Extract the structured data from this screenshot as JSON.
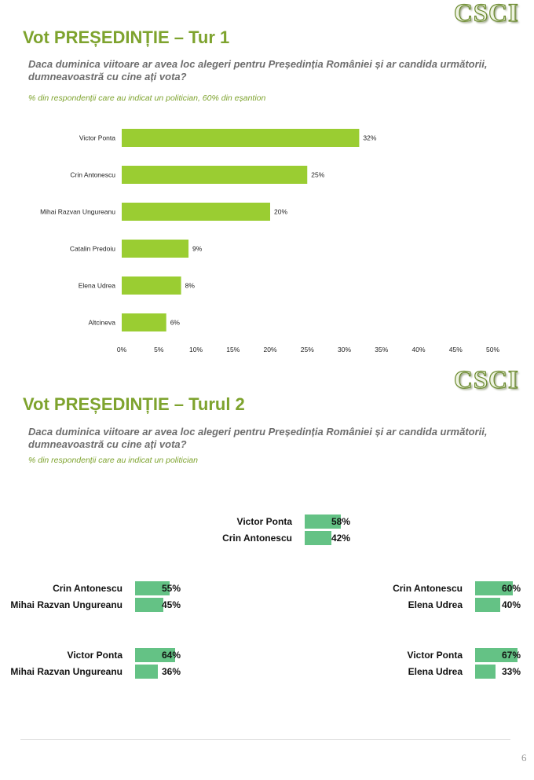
{
  "logo": "CSCI",
  "section1": {
    "title": "Vot PREȘEDINȚIE – Tur 1",
    "question": "Daca duminica viitoare ar avea loc alegeri pentru Președinția României și ar candida următorii, dumneavoastră cu cine ați vota?",
    "note": "% din respondenții care au indicat un politician, 60% din eșantion"
  },
  "section2": {
    "title": "Vot PREȘEDINȚIE – Turul 2",
    "question": "Daca duminica viitoare ar avea loc alegeri pentru Președinția României și ar candida următorii, dumneavoastră cu cine ați vota?",
    "note": "% din respondenții care au indicat un politician"
  },
  "colors": {
    "accent": "#7ea32e",
    "bar1": "#9acd32",
    "bar2": "#64c285"
  },
  "chart_data": [
    {
      "type": "bar",
      "orientation": "horizontal",
      "title": "Vot PREȘEDINȚIE – Tur 1",
      "categories": [
        "Victor Ponta",
        "Crin Antonescu",
        "Mihai Razvan Ungureanu",
        "Catalin Predoiu",
        "Elena Udrea",
        "Altcineva"
      ],
      "values": [
        32,
        25,
        20,
        9,
        8,
        6
      ],
      "value_labels": [
        "32%",
        "25%",
        "20%",
        "9%",
        "8%",
        "6%"
      ],
      "xlim": [
        0,
        50
      ],
      "xticks": [
        0,
        5,
        10,
        15,
        20,
        25,
        30,
        35,
        40,
        45,
        50
      ],
      "xtick_labels": [
        "0%",
        "5%",
        "10%",
        "15%",
        "20%",
        "25%",
        "30%",
        "35%",
        "40%",
        "45%",
        "50%"
      ],
      "grid": false
    },
    {
      "type": "bar",
      "title": "Vot PREȘEDINȚIE – Turul 2",
      "matchups": [
        {
          "names": [
            "Victor Ponta",
            "Crin Antonescu"
          ],
          "values": [
            58,
            42
          ],
          "labels": [
            "58%",
            "42%"
          ]
        },
        {
          "names": [
            "Crin Antonescu",
            "Mihai Razvan Ungureanu"
          ],
          "values": [
            55,
            45
          ],
          "labels": [
            "55%",
            "45%"
          ]
        },
        {
          "names": [
            "Crin Antonescu",
            "Elena Udrea"
          ],
          "values": [
            60,
            40
          ],
          "labels": [
            "60%",
            "40%"
          ]
        },
        {
          "names": [
            "Victor Ponta",
            "Mihai Razvan Ungureanu"
          ],
          "values": [
            64,
            36
          ],
          "labels": [
            "64%",
            "36%"
          ]
        },
        {
          "names": [
            "Victor Ponta",
            "Elena Udrea"
          ],
          "values": [
            67,
            33
          ],
          "labels": [
            "67%",
            "33%"
          ]
        }
      ]
    }
  ],
  "footer": {
    "page_number": "6"
  }
}
